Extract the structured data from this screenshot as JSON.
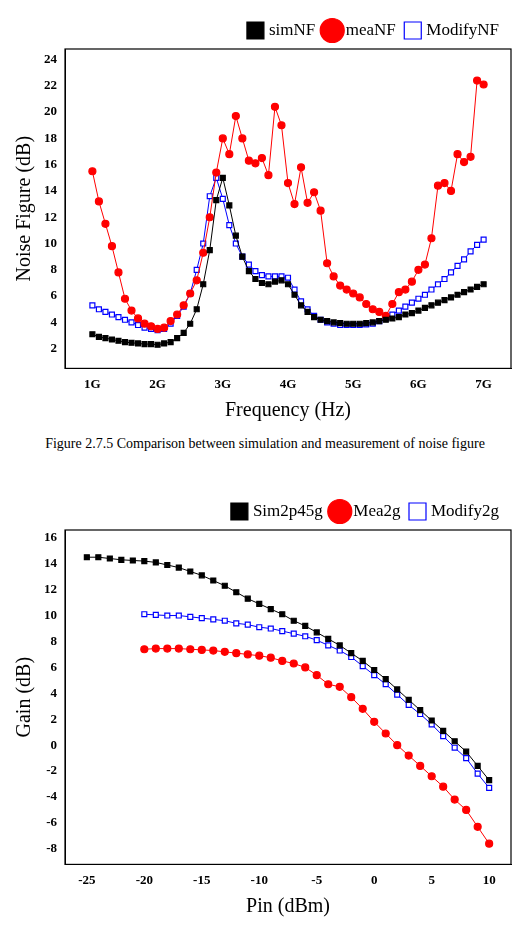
{
  "caption": "Figure 2.7.5 Comparison between simulation and measurement of noise figure",
  "chart_data": [
    {
      "type": "line",
      "x_label": "Frequency (Hz)",
      "y_label": "Noise Figure (dB)",
      "xlim": [
        0.58,
        7.42
      ],
      "ylim": [
        0.5,
        24.8
      ],
      "xticks": [
        {
          "value": 1,
          "label": "1G"
        },
        {
          "value": 2,
          "label": "2G"
        },
        {
          "value": 3,
          "label": "3G"
        },
        {
          "value": 4,
          "label": "4G"
        },
        {
          "value": 5,
          "label": "5G"
        },
        {
          "value": 6,
          "label": "6G"
        },
        {
          "value": 7,
          "label": "7G"
        }
      ],
      "yticks": [
        2,
        4,
        6,
        8,
        10,
        12,
        14,
        16,
        18,
        20,
        22,
        24
      ],
      "grid": false,
      "legend": "top right",
      "x": [
        1.0,
        1.1,
        1.2,
        1.3,
        1.4,
        1.5,
        1.6,
        1.7,
        1.8,
        1.9,
        2.0,
        2.1,
        2.2,
        2.3,
        2.4,
        2.5,
        2.6,
        2.7,
        2.8,
        2.9,
        3.0,
        3.1,
        3.2,
        3.3,
        3.4,
        3.5,
        3.6,
        3.7,
        3.8,
        3.9,
        4.0,
        4.1,
        4.2,
        4.3,
        4.4,
        4.5,
        4.6,
        4.7,
        4.8,
        4.9,
        5.0,
        5.1,
        5.2,
        5.3,
        5.4,
        5.5,
        5.6,
        5.7,
        5.8,
        5.9,
        6.0,
        6.1,
        6.2,
        6.3,
        6.4,
        6.5,
        6.6,
        6.7,
        6.8,
        6.9,
        7.0
      ],
      "series": [
        {
          "name": "simNF",
          "color": "#000000",
          "marker": "square",
          "values": [
            3.1,
            2.9,
            2.8,
            2.7,
            2.6,
            2.5,
            2.45,
            2.4,
            2.35,
            2.35,
            2.3,
            2.4,
            2.5,
            2.8,
            3.2,
            3.9,
            5.0,
            6.9,
            9.5,
            13.3,
            15.0,
            12.9,
            10.6,
            9.0,
            7.9,
            7.3,
            7.0,
            6.9,
            7.1,
            7.2,
            6.9,
            6.1,
            5.3,
            4.8,
            4.4,
            4.2,
            4.1,
            4.0,
            3.95,
            3.9,
            3.9,
            3.9,
            3.95,
            4.0,
            4.1,
            4.2,
            4.3,
            4.4,
            4.6,
            4.7,
            4.9,
            5.1,
            5.3,
            5.5,
            5.7,
            5.9,
            6.1,
            6.3,
            6.5,
            6.7,
            6.9
          ]
        },
        {
          "name": "meaNF",
          "color": "#ff0000",
          "marker": "circle",
          "values": [
            15.5,
            13.2,
            11.5,
            9.8,
            7.8,
            5.8,
            4.9,
            4.3,
            3.9,
            3.7,
            3.5,
            3.6,
            4.1,
            4.6,
            5.3,
            6.2,
            7.2,
            9.3,
            12.0,
            15.4,
            18.0,
            16.8,
            19.7,
            18.0,
            16.3,
            16.1,
            16.5,
            15.2,
            20.4,
            19.0,
            14.6,
            13.0,
            15.8,
            13.1,
            13.9,
            12.5,
            8.5,
            7.5,
            6.8,
            6.5,
            6.2,
            5.9,
            5.4,
            5.0,
            4.8,
            4.5,
            5.4,
            6.3,
            6.5,
            7.1,
            8.0,
            8.4,
            10.4,
            14.4,
            14.6,
            14.0,
            16.8,
            16.2,
            16.6,
            22.4,
            22.1
          ]
        },
        {
          "name": "ModifyNF",
          "color": "#0000ff",
          "marker": "open_square",
          "values": [
            5.3,
            5.0,
            4.8,
            4.6,
            4.4,
            4.2,
            4.0,
            3.8,
            3.6,
            3.5,
            3.4,
            3.5,
            3.9,
            4.5,
            5.2,
            6.2,
            8.0,
            10.0,
            13.6,
            15.0,
            13.4,
            11.4,
            10.0,
            9.0,
            8.4,
            7.9,
            7.6,
            7.5,
            7.5,
            7.5,
            7.4,
            6.5,
            5.6,
            5.0,
            4.5,
            4.2,
            4.0,
            3.9,
            3.8,
            3.8,
            3.8,
            3.8,
            3.85,
            3.9,
            4.1,
            4.3,
            4.6,
            4.9,
            5.2,
            5.5,
            5.8,
            6.1,
            6.5,
            6.9,
            7.3,
            7.8,
            8.3,
            8.8,
            9.4,
            9.9,
            10.3
          ]
        }
      ]
    },
    {
      "type": "line",
      "x_label": "Pin (dBm)",
      "y_label": "Gain (dB)",
      "xlim": [
        -26.9,
        11.9
      ],
      "ylim": [
        -9.2,
        16.6
      ],
      "xticks": [
        -25,
        -20,
        -15,
        -10,
        -5,
        0,
        5,
        10
      ],
      "yticks": [
        -8,
        -6,
        -4,
        -2,
        0,
        2,
        4,
        6,
        8,
        10,
        12,
        14,
        16
      ],
      "grid": false,
      "legend": "top right",
      "series": [
        {
          "name": "Sim2p45g",
          "color": "#000000",
          "marker": "square",
          "x": [
            -25,
            -24,
            -23,
            -22,
            -21,
            -20,
            -19,
            -18,
            -17,
            -16,
            -15,
            -14,
            -13,
            -12,
            -11,
            -10,
            -9,
            -8,
            -7,
            -6,
            -5,
            -4,
            -3,
            -2,
            -1,
            0,
            1,
            2,
            3,
            4,
            5,
            6,
            7,
            8,
            9,
            10
          ],
          "values": [
            14.5,
            14.5,
            14.4,
            14.3,
            14.25,
            14.2,
            14.1,
            13.9,
            13.7,
            13.4,
            13.1,
            12.7,
            12.3,
            11.8,
            11.3,
            10.9,
            10.5,
            10.1,
            9.6,
            9.2,
            8.7,
            8.2,
            7.7,
            7.1,
            6.5,
            5.8,
            5.1,
            4.3,
            3.5,
            2.7,
            1.9,
            1.1,
            0.3,
            -0.5,
            -1.6,
            -2.7
          ]
        },
        {
          "name": "Mea2g",
          "color": "#ff0000",
          "marker": "circle",
          "x": [
            -20,
            -19,
            -18,
            -17,
            -16,
            -15,
            -14,
            -13,
            -12,
            -11,
            -10,
            -9,
            -8,
            -7,
            -6,
            -5,
            -4,
            -3,
            -2,
            -1,
            0,
            1,
            2,
            3,
            4,
            5,
            6,
            7,
            8,
            9,
            10
          ],
          "values": [
            7.4,
            7.45,
            7.45,
            7.45,
            7.4,
            7.35,
            7.3,
            7.2,
            7.1,
            7.0,
            6.9,
            6.75,
            6.5,
            6.3,
            6.0,
            5.4,
            4.7,
            4.5,
            3.7,
            2.8,
            1.8,
            0.9,
            0.0,
            -0.8,
            -1.6,
            -2.4,
            -3.2,
            -4.2,
            -5.0,
            -6.3,
            -7.6
          ]
        },
        {
          "name": "Modify2g",
          "color": "#0000ff",
          "marker": "open_square",
          "x": [
            -20,
            -19,
            -18,
            -17,
            -16,
            -15,
            -14,
            -13,
            -12,
            -11,
            -10,
            -9,
            -8,
            -7,
            -6,
            -5,
            -4,
            -3,
            -2,
            -1,
            0,
            1,
            2,
            3,
            4,
            5,
            6,
            7,
            8,
            9,
            10
          ],
          "values": [
            10.1,
            10.05,
            10.0,
            10.0,
            9.9,
            9.8,
            9.7,
            9.6,
            9.4,
            9.3,
            9.1,
            9.0,
            8.8,
            8.6,
            8.4,
            8.1,
            7.7,
            7.3,
            6.8,
            6.1,
            5.4,
            4.7,
            3.9,
            3.1,
            2.4,
            1.6,
            0.7,
            -0.2,
            -1.0,
            -2.2,
            -3.3
          ]
        }
      ]
    }
  ]
}
